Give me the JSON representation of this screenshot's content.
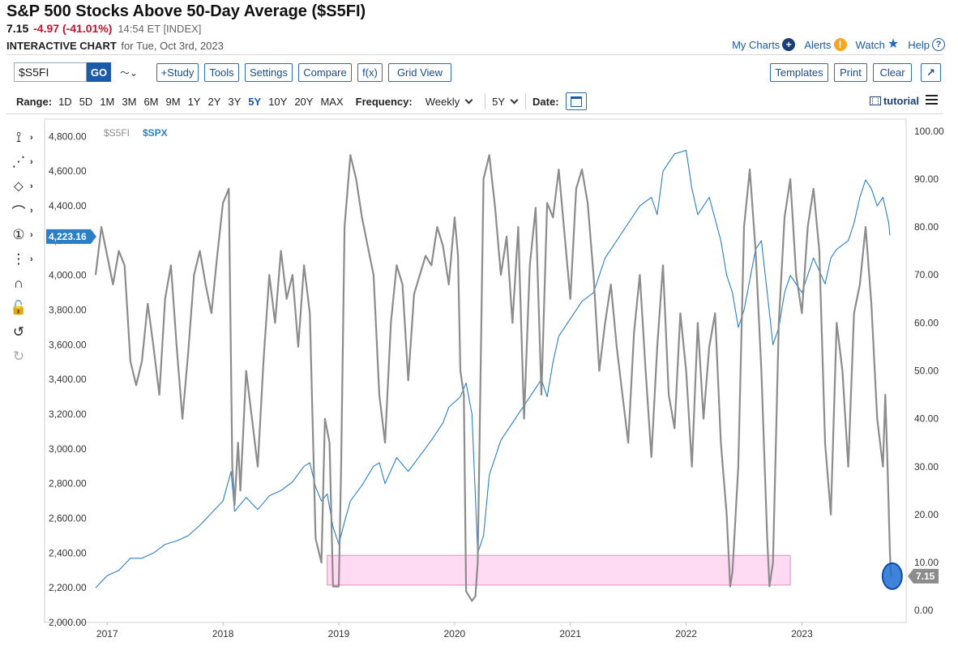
{
  "header": {
    "title": "S&P 500 Stocks Above 50-Day Average ($S5FI)",
    "last": "7.15",
    "change": "-4.97 (-41.01%)",
    "time": "14:54 ET [INDEX]",
    "chart_label": "INTERACTIVE CHART",
    "for_date": "for Tue, Oct 3rd, 2023"
  },
  "top_links": {
    "my_charts": "My Charts",
    "alerts": "Alerts",
    "watch": "Watch",
    "help": "Help",
    "plus_glyph": "+",
    "alert_glyph": "!",
    "help_glyph": "?",
    "star_glyph": "★"
  },
  "toolbar": {
    "symbol": "$S5FI",
    "go": "GO",
    "chart_type_glyph": "〜⌄",
    "study": "+Study",
    "tools": "Tools",
    "settings": "Settings",
    "compare": "Compare",
    "fx": "f(x)",
    "grid_view": "Grid View",
    "templates": "Templates",
    "print": "Print",
    "clear": "Clear",
    "expand_glyph": "↗"
  },
  "range_bar": {
    "label": "Range:",
    "ranges": [
      "1D",
      "5D",
      "1M",
      "3M",
      "6M",
      "9M",
      "1Y",
      "2Y",
      "3Y",
      "5Y",
      "10Y",
      "20Y",
      "MAX"
    ],
    "selected": "5Y",
    "frequency_label": "Frequency:",
    "frequency": "Weekly",
    "period": "5Y",
    "date_label": "Date:",
    "tutorial": "tutorial"
  },
  "left_tools": [
    {
      "name": "crosshair-icon",
      "glyph": "⟟"
    },
    {
      "name": "trendline-icon",
      "glyph": "⋰"
    },
    {
      "name": "shapes-icon",
      "glyph": "⬦"
    },
    {
      "name": "arc-icon",
      "glyph": "⌒"
    },
    {
      "name": "annotation-icon",
      "glyph": "①"
    },
    {
      "name": "measure-icon",
      "glyph": "⋮"
    },
    {
      "name": "magnet-icon",
      "glyph": "∩"
    },
    {
      "name": "lock-icon",
      "glyph": "🔓"
    },
    {
      "name": "undo-icon",
      "glyph": "↺"
    },
    {
      "name": "redo-icon",
      "glyph": "↻"
    }
  ],
  "colors": {
    "s5fi": "#8c8c8c",
    "spx": "#2a7fc7",
    "highlight_fill": "#ffd4f0",
    "highlight_stroke": "#e07aa8",
    "accent": "#1a5aa8"
  },
  "chart_data": {
    "type": "line",
    "legend": [
      "$S5FI",
      "$SPX"
    ],
    "x_ticks": [
      "2017",
      "2018",
      "2019",
      "2020",
      "2021",
      "2022",
      "2023"
    ],
    "left_axis": {
      "series": "$SPX",
      "ylim": [
        2000,
        4900
      ],
      "ticks": [
        "2,000.00",
        "2,200.00",
        "2,400.00",
        "2,600.00",
        "2,800.00",
        "3,000.00",
        "3,200.00",
        "3,400.00",
        "3,600.00",
        "3,800.00",
        "4,000.00",
        "4,200.00",
        "4,400.00",
        "4,600.00",
        "4,800.00"
      ],
      "tick_values": [
        2000,
        2200,
        2400,
        2600,
        2800,
        3000,
        3200,
        3400,
        3600,
        3800,
        4000,
        4200,
        4400,
        4600,
        4800
      ],
      "last_value": 4223.16,
      "last_label": "4,223.16"
    },
    "right_axis": {
      "series": "$S5FI",
      "ylim": [
        -2.5,
        102.5
      ],
      "ticks": [
        "0.00",
        "10.00",
        "20.00",
        "30.00",
        "40.00",
        "50.00",
        "60.00",
        "70.00",
        "80.00",
        "90.00",
        "100.00"
      ],
      "tick_values": [
        0,
        10,
        20,
        30,
        40,
        50,
        60,
        70,
        80,
        90,
        100
      ],
      "last_value": 7.15,
      "last_label": "7.15"
    },
    "x_range": [
      2016.9,
      2023.9
    ],
    "series": [
      {
        "name": "$SPX",
        "axis": "left",
        "points": [
          [
            2016.9,
            2200
          ],
          [
            2017.0,
            2270
          ],
          [
            2017.1,
            2300
          ],
          [
            2017.2,
            2370
          ],
          [
            2017.3,
            2370
          ],
          [
            2017.4,
            2400
          ],
          [
            2017.5,
            2450
          ],
          [
            2017.6,
            2470
          ],
          [
            2017.7,
            2500
          ],
          [
            2017.8,
            2560
          ],
          [
            2017.9,
            2630
          ],
          [
            2018.0,
            2700
          ],
          [
            2018.07,
            2870
          ],
          [
            2018.1,
            2640
          ],
          [
            2018.2,
            2720
          ],
          [
            2018.3,
            2650
          ],
          [
            2018.4,
            2730
          ],
          [
            2018.5,
            2760
          ],
          [
            2018.6,
            2810
          ],
          [
            2018.7,
            2900
          ],
          [
            2018.75,
            2920
          ],
          [
            2018.8,
            2780
          ],
          [
            2018.85,
            2700
          ],
          [
            2018.9,
            2740
          ],
          [
            2018.95,
            2550
          ],
          [
            2019.0,
            2450
          ],
          [
            2019.05,
            2580
          ],
          [
            2019.1,
            2700
          ],
          [
            2019.2,
            2790
          ],
          [
            2019.3,
            2900
          ],
          [
            2019.35,
            2920
          ],
          [
            2019.4,
            2800
          ],
          [
            2019.5,
            2950
          ],
          [
            2019.6,
            2870
          ],
          [
            2019.7,
            2960
          ],
          [
            2019.8,
            3050
          ],
          [
            2019.9,
            3150
          ],
          [
            2019.95,
            3240
          ],
          [
            2020.05,
            3300
          ],
          [
            2020.1,
            3380
          ],
          [
            2020.15,
            3200
          ],
          [
            2020.2,
            2400
          ],
          [
            2020.25,
            2500
          ],
          [
            2020.3,
            2850
          ],
          [
            2020.4,
            3050
          ],
          [
            2020.5,
            3150
          ],
          [
            2020.6,
            3250
          ],
          [
            2020.7,
            3350
          ],
          [
            2020.75,
            3400
          ],
          [
            2020.8,
            3300
          ],
          [
            2020.85,
            3500
          ],
          [
            2020.9,
            3650
          ],
          [
            2021.0,
            3750
          ],
          [
            2021.1,
            3850
          ],
          [
            2021.2,
            3900
          ],
          [
            2021.3,
            4100
          ],
          [
            2021.4,
            4200
          ],
          [
            2021.5,
            4300
          ],
          [
            2021.6,
            4400
          ],
          [
            2021.7,
            4450
          ],
          [
            2021.75,
            4350
          ],
          [
            2021.8,
            4600
          ],
          [
            2021.9,
            4700
          ],
          [
            2022.0,
            4720
          ],
          [
            2022.05,
            4500
          ],
          [
            2022.1,
            4350
          ],
          [
            2022.2,
            4450
          ],
          [
            2022.3,
            4200
          ],
          [
            2022.35,
            4000
          ],
          [
            2022.4,
            3900
          ],
          [
            2022.45,
            3700
          ],
          [
            2022.5,
            3800
          ],
          [
            2022.6,
            4150
          ],
          [
            2022.65,
            4200
          ],
          [
            2022.7,
            3900
          ],
          [
            2022.75,
            3600
          ],
          [
            2022.8,
            3700
          ],
          [
            2022.85,
            3900
          ],
          [
            2022.9,
            4000
          ],
          [
            2023.0,
            3900
          ],
          [
            2023.1,
            4100
          ],
          [
            2023.2,
            3950
          ],
          [
            2023.25,
            4100
          ],
          [
            2023.3,
            4150
          ],
          [
            2023.4,
            4200
          ],
          [
            2023.45,
            4300
          ],
          [
            2023.5,
            4450
          ],
          [
            2023.55,
            4550
          ],
          [
            2023.6,
            4500
          ],
          [
            2023.65,
            4400
          ],
          [
            2023.7,
            4450
          ],
          [
            2023.75,
            4300
          ],
          [
            2023.76,
            4230
          ]
        ]
      },
      {
        "name": "$S5FI",
        "axis": "right",
        "points": [
          [
            2016.9,
            70
          ],
          [
            2016.95,
            80
          ],
          [
            2017.0,
            74
          ],
          [
            2017.05,
            68
          ],
          [
            2017.1,
            75
          ],
          [
            2017.15,
            72
          ],
          [
            2017.2,
            52
          ],
          [
            2017.25,
            47
          ],
          [
            2017.3,
            52
          ],
          [
            2017.35,
            64
          ],
          [
            2017.4,
            55
          ],
          [
            2017.45,
            45
          ],
          [
            2017.5,
            65
          ],
          [
            2017.55,
            72
          ],
          [
            2017.6,
            55
          ],
          [
            2017.65,
            40
          ],
          [
            2017.7,
            54
          ],
          [
            2017.75,
            70
          ],
          [
            2017.8,
            75
          ],
          [
            2017.85,
            68
          ],
          [
            2017.9,
            62
          ],
          [
            2017.95,
            74
          ],
          [
            2018.0,
            85
          ],
          [
            2018.05,
            88
          ],
          [
            2018.08,
            30
          ],
          [
            2018.1,
            22
          ],
          [
            2018.13,
            35
          ],
          [
            2018.15,
            25
          ],
          [
            2018.2,
            50
          ],
          [
            2018.25,
            40
          ],
          [
            2018.3,
            30
          ],
          [
            2018.35,
            52
          ],
          [
            2018.4,
            70
          ],
          [
            2018.45,
            60
          ],
          [
            2018.5,
            75
          ],
          [
            2018.55,
            65
          ],
          [
            2018.6,
            70
          ],
          [
            2018.65,
            55
          ],
          [
            2018.7,
            72
          ],
          [
            2018.75,
            62
          ],
          [
            2018.8,
            15
          ],
          [
            2018.85,
            10
          ],
          [
            2018.88,
            40
          ],
          [
            2018.92,
            35
          ],
          [
            2018.95,
            5
          ],
          [
            2019.0,
            5
          ],
          [
            2019.02,
            30
          ],
          [
            2019.05,
            80
          ],
          [
            2019.1,
            95
          ],
          [
            2019.15,
            90
          ],
          [
            2019.2,
            82
          ],
          [
            2019.25,
            76
          ],
          [
            2019.3,
            70
          ],
          [
            2019.35,
            45
          ],
          [
            2019.4,
            35
          ],
          [
            2019.45,
            60
          ],
          [
            2019.5,
            72
          ],
          [
            2019.55,
            68
          ],
          [
            2019.6,
            48
          ],
          [
            2019.65,
            66
          ],
          [
            2019.7,
            70
          ],
          [
            2019.75,
            74
          ],
          [
            2019.8,
            72
          ],
          [
            2019.85,
            80
          ],
          [
            2019.9,
            76
          ],
          [
            2019.95,
            68
          ],
          [
            2020.0,
            82
          ],
          [
            2020.03,
            74
          ],
          [
            2020.05,
            50
          ],
          [
            2020.08,
            45
          ],
          [
            2020.1,
            4
          ],
          [
            2020.15,
            2
          ],
          [
            2020.18,
            3
          ],
          [
            2020.2,
            10
          ],
          [
            2020.25,
            90
          ],
          [
            2020.3,
            95
          ],
          [
            2020.35,
            84
          ],
          [
            2020.4,
            70
          ],
          [
            2020.45,
            78
          ],
          [
            2020.5,
            60
          ],
          [
            2020.55,
            80
          ],
          [
            2020.6,
            40
          ],
          [
            2020.65,
            72
          ],
          [
            2020.7,
            84
          ],
          [
            2020.75,
            45
          ],
          [
            2020.8,
            85
          ],
          [
            2020.85,
            82
          ],
          [
            2020.9,
            92
          ],
          [
            2021.0,
            65
          ],
          [
            2021.05,
            88
          ],
          [
            2021.1,
            92
          ],
          [
            2021.15,
            85
          ],
          [
            2021.2,
            70
          ],
          [
            2021.25,
            50
          ],
          [
            2021.3,
            60
          ],
          [
            2021.35,
            68
          ],
          [
            2021.4,
            55
          ],
          [
            2021.45,
            45
          ],
          [
            2021.5,
            35
          ],
          [
            2021.55,
            58
          ],
          [
            2021.6,
            70
          ],
          [
            2021.65,
            50
          ],
          [
            2021.7,
            32
          ],
          [
            2021.75,
            55
          ],
          [
            2021.8,
            72
          ],
          [
            2021.85,
            45
          ],
          [
            2021.9,
            38
          ],
          [
            2021.95,
            62
          ],
          [
            2022.0,
            50
          ],
          [
            2022.05,
            30
          ],
          [
            2022.1,
            60
          ],
          [
            2022.15,
            40
          ],
          [
            2022.2,
            55
          ],
          [
            2022.25,
            62
          ],
          [
            2022.3,
            35
          ],
          [
            2022.35,
            20
          ],
          [
            2022.38,
            5
          ],
          [
            2022.4,
            8
          ],
          [
            2022.45,
            30
          ],
          [
            2022.5,
            80
          ],
          [
            2022.55,
            92
          ],
          [
            2022.6,
            75
          ],
          [
            2022.65,
            50
          ],
          [
            2022.7,
            15
          ],
          [
            2022.72,
            5
          ],
          [
            2022.75,
            10
          ],
          [
            2022.8,
            60
          ],
          [
            2022.85,
            82
          ],
          [
            2022.9,
            90
          ],
          [
            2022.95,
            70
          ],
          [
            2023.0,
            62
          ],
          [
            2023.05,
            80
          ],
          [
            2023.1,
            88
          ],
          [
            2023.15,
            75
          ],
          [
            2023.2,
            35
          ],
          [
            2023.25,
            20
          ],
          [
            2023.3,
            60
          ],
          [
            2023.35,
            50
          ],
          [
            2023.4,
            30
          ],
          [
            2023.45,
            62
          ],
          [
            2023.5,
            68
          ],
          [
            2023.55,
            80
          ],
          [
            2023.6,
            64
          ],
          [
            2023.65,
            40
          ],
          [
            2023.7,
            30
          ],
          [
            2023.72,
            45
          ],
          [
            2023.74,
            30
          ],
          [
            2023.76,
            12
          ],
          [
            2023.77,
            7.15
          ]
        ]
      }
    ],
    "highlight_band": {
      "x_from": 2018.9,
      "x_to": 2022.9,
      "y_from": 5.3,
      "y_to": 11.5,
      "axis": "right"
    },
    "marker": {
      "x": 2023.78,
      "y": 7.15,
      "axis": "right"
    }
  }
}
